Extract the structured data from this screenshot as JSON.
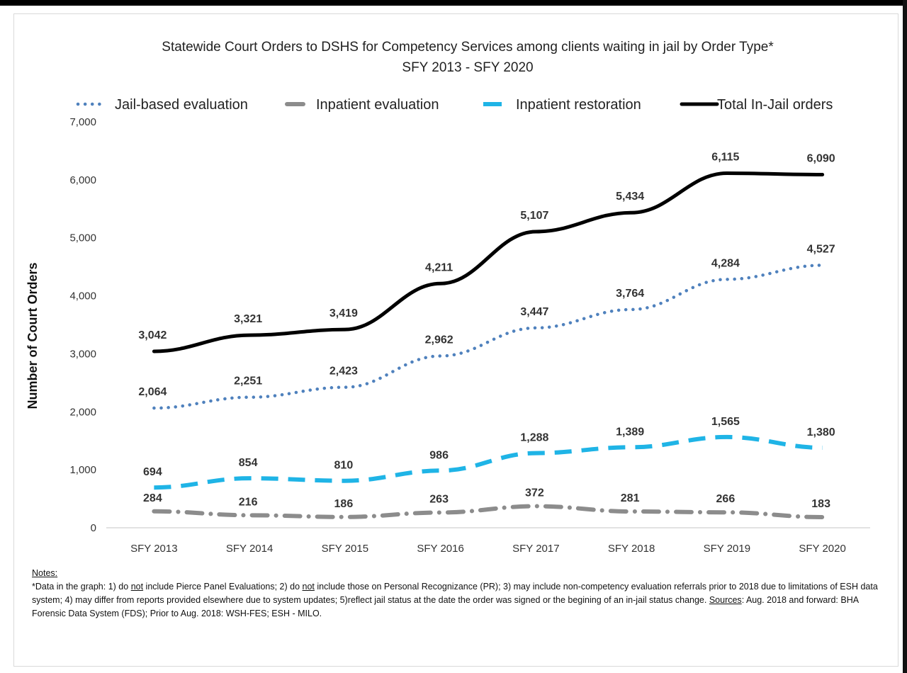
{
  "chart_data": {
    "type": "line",
    "title": "Statewide Court Orders to DSHS for Competency Services among clients waiting in jail by Order Type*",
    "subtitle": "SFY 2013 - SFY 2020",
    "ylabel": "Number of Court Orders",
    "xlabel": "",
    "ylim": [
      0,
      7000
    ],
    "yticks": [
      "7,000",
      "6,000",
      "5,000",
      "4,000",
      "3,000",
      "2,000",
      "1,000",
      "0"
    ],
    "ytick_values": [
      7000,
      6000,
      5000,
      4000,
      3000,
      2000,
      1000,
      0
    ],
    "categories": [
      "SFY 2013",
      "SFY 2014",
      "SFY 2015",
      "SFY 2016",
      "SFY 2017",
      "SFY 2018",
      "SFY 2019",
      "SFY 2020"
    ],
    "legend_position": "top",
    "grid": false,
    "series": [
      {
        "name": "Jail-based evaluation",
        "color": "#4f81bd",
        "style": "dotted",
        "values": [
          2064,
          2251,
          2423,
          2962,
          3447,
          3764,
          4284,
          4527
        ],
        "labels": [
          "2,064",
          "2,251",
          "2,423",
          "2,962",
          "3,447",
          "3,764",
          "4,284",
          "4,527"
        ]
      },
      {
        "name": "Inpatient evaluation",
        "color": "#8c8c8c",
        "style": "dashdot",
        "values": [
          284,
          216,
          186,
          263,
          372,
          281,
          266,
          183
        ],
        "labels": [
          "284",
          "216",
          "186",
          "263",
          "372",
          "281",
          "266",
          "183"
        ]
      },
      {
        "name": "Inpatient restoration",
        "color": "#1fb4e6",
        "style": "dashed",
        "values": [
          694,
          854,
          810,
          986,
          1288,
          1389,
          1565,
          1380
        ],
        "labels": [
          "694",
          "854",
          "810",
          "986",
          "1,288",
          "1,389",
          "1,565",
          "1,380"
        ]
      },
      {
        "name": "Total In-Jail orders",
        "color": "#000000",
        "style": "solid",
        "values": [
          3042,
          3321,
          3419,
          4211,
          5107,
          5434,
          6115,
          6090
        ],
        "labels": [
          "3,042",
          "3,321",
          "3,419",
          "4,211",
          "5,107",
          "5,434",
          "6,115",
          "6,090"
        ]
      }
    ]
  },
  "notes": {
    "heading": "Notes",
    "p1": "*Data in the graph: 1) do ",
    "not1": "not",
    "p2": " include Pierce Panel Evaluations; 2) do ",
    "not2": "not",
    "p3": " include those on Personal Recognizance (PR); 3) may include non-competency evaluation referrals prior to 2018 due to limitations of ESH data system; 4) may differ from reports provided elsewhere due to system updates; 5)reflect jail status at the date the order was signed or the begining of an in-jail status change. ",
    "sources": "Sources",
    "p4": ": Aug. 2018 and forward: BHA Forensic Data System (FDS); Prior to Aug. 2018: WSH-FES; ESH - MILO."
  }
}
